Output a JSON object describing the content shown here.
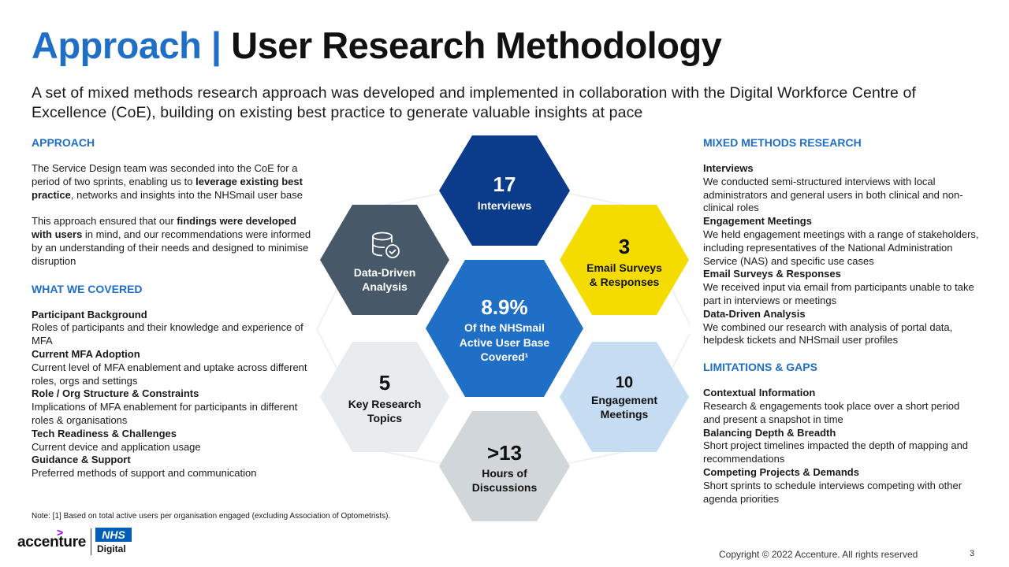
{
  "header": {
    "title_part1": "Approach",
    "title_sep": " | ",
    "title_part2": "User Research Methodology",
    "subtitle": "A set of mixed methods research approach was developed and implemented in collaboration with the Digital Workforce Centre of Excellence (CoE), building on existing best practice to generate valuable insights at pace"
  },
  "left": {
    "approach_title": "APPROACH",
    "p1_a": "The Service Design team was seconded into the CoE for a period of two sprints, enabling us to ",
    "p1_b": "leverage existing best practice",
    "p1_c": ", networks and insights into the NHSmail user base",
    "p2_a": "This approach ensured that our ",
    "p2_b": "findings were developed with users",
    "p2_c": " in mind, and our recommendations were informed by an understanding of their needs and designed to minimise disruption",
    "covered_title": "WHAT WE COVERED",
    "covered": [
      {
        "head": "Participant Background",
        "body": "Roles of participants and their knowledge and experience of MFA"
      },
      {
        "head": "Current MFA Adoption",
        "body": "Current level of MFA enablement and uptake across different roles, orgs and settings"
      },
      {
        "head": "Role / Org Structure & Constraints",
        "body": "Implications of MFA enablement for participants in different roles & organisations"
      },
      {
        "head": "Tech Readiness & Challenges",
        "body": "Current device and application usage"
      },
      {
        "head": "Guidance & Support",
        "body": "Preferred methods of support and communication"
      }
    ]
  },
  "right": {
    "mixed_title": "MIXED METHODS RESEARCH",
    "mixed": [
      {
        "head": "Interviews",
        "body": "We conducted semi-structured interviews with local administrators and general users in both clinical and non-clinical roles"
      },
      {
        "head": "Engagement Meetings",
        "body": "We held engagement meetings with a range of stakeholders, including representatives of the National Administration Service (NAS) and specific use cases"
      },
      {
        "head": "Email Surveys & Responses",
        "body": "We received input via email from participants unable to take part in interviews or meetings"
      },
      {
        "head": "Data-Driven Analysis",
        "body": "We combined our research with analysis of portal data, helpdesk tickets and NHSmail user profiles"
      }
    ],
    "limits_title": "LIMITATIONS & GAPS",
    "limits": [
      {
        "head": "Contextual Information",
        "body": "Research & engagements took place over a short period and present a snapshot in time"
      },
      {
        "head": "Balancing Depth & Breadth",
        "body": "Short project timelines impacted the depth of mapping and recommendations"
      },
      {
        "head": "Competing Projects & Demands",
        "body": "Short sprints to schedule interviews competing with other agenda priorities"
      }
    ]
  },
  "hexes": {
    "interviews": {
      "number": "17",
      "label1": "Interviews",
      "color": "#0b3c8c"
    },
    "surveys": {
      "number": "3",
      "label1": "Email Surveys",
      "label2": "& Responses",
      "color": "#f5dc00"
    },
    "meetings": {
      "number": "10",
      "label1": "Engagement",
      "label2": "Meetings",
      "color": "#c6dcf3"
    },
    "hours": {
      "number": ">13",
      "label1": "Hours of",
      "label2": "Discussions",
      "color": "#d0d6da"
    },
    "topics": {
      "number": "5",
      "label1": "Key Research",
      "label2": "Topics",
      "color": "#e8ecee"
    },
    "analysis": {
      "label1": "Data-Driven",
      "label2": "Analysis",
      "icon": "database-check-icon",
      "color": "#475868"
    },
    "center": {
      "number": "8.9%",
      "label1": "Of the NHSmail",
      "label2": "Active User Base",
      "label3": "Covered¹",
      "color": "#1f6fc6"
    }
  },
  "footer": {
    "note": "Note: [1] Based on total active users per organisation engaged (excluding Association of Optometrists).",
    "acc_word": "accenture",
    "acc_mark": ">",
    "nhs": "NHS",
    "nhs_sub": "Digital",
    "copyright": "Copyright © 2022 Accenture. All rights reserved",
    "page": "3"
  }
}
